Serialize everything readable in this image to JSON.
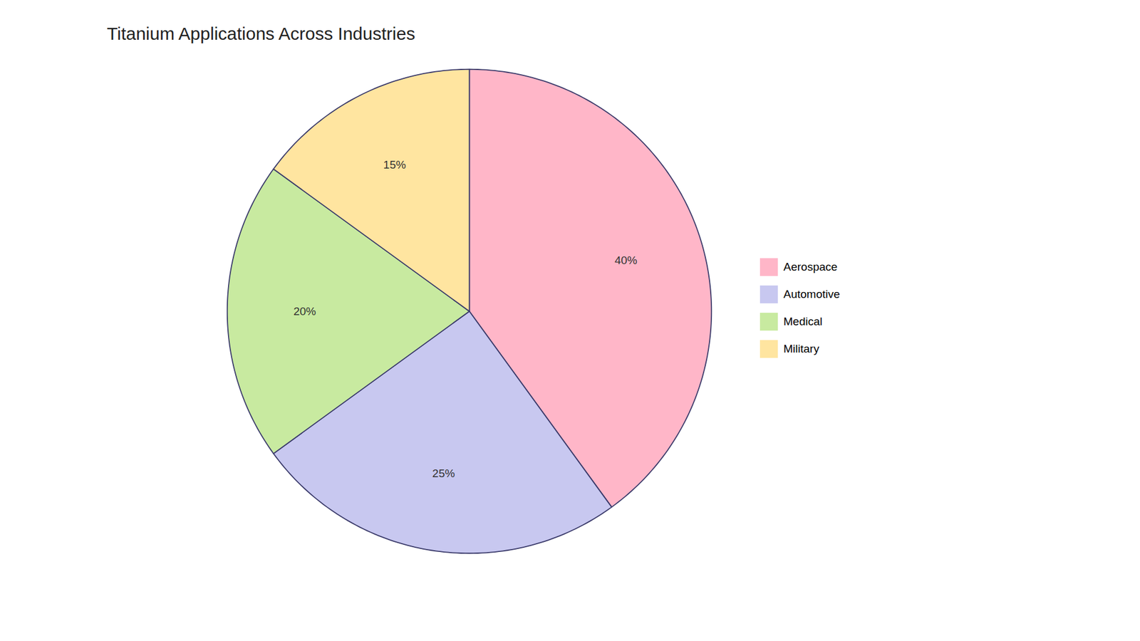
{
  "chart_data": {
    "type": "pie",
    "title": "Titanium Applications Across Industries",
    "categories": [
      "Aerospace",
      "Automotive",
      "Medical",
      "Military"
    ],
    "values": [
      40,
      25,
      20,
      15
    ],
    "value_labels": [
      "40%",
      "25%",
      "20%",
      "15%"
    ],
    "colors": [
      "#FFB6C8",
      "#C8C8F0",
      "#C8EAA0",
      "#FFE5A0"
    ],
    "data_labels": true,
    "legend": "right"
  }
}
